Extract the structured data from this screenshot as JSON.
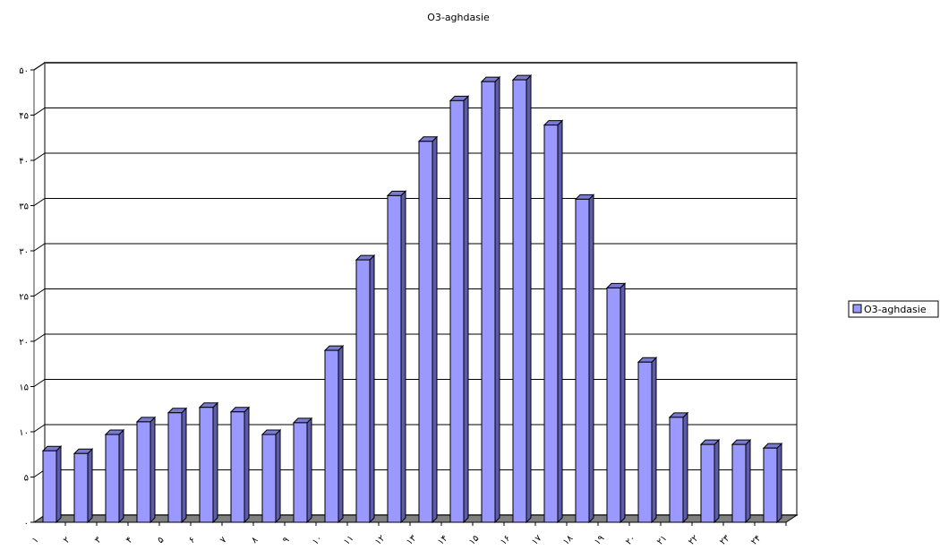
{
  "chart_data": {
    "type": "bar",
    "title": "O3-aghdasie",
    "xlabel": "",
    "ylabel": "",
    "categories": [
      "۱",
      "۲",
      "۳",
      "۴",
      "۵",
      "۶",
      "۷",
      "۸",
      "۹",
      "۱۰",
      "۱۱",
      "۱۲",
      "۱۳",
      "۱۴",
      "۱۵",
      "۱۶",
      "۱۷",
      "۱۸",
      "۱۹",
      "۲۰",
      "۲۱",
      "۲۲",
      "۲۳",
      "۲۴"
    ],
    "series": [
      {
        "name": "O3-aghdasie",
        "color": "#9999FF",
        "values": [
          7.9,
          7.6,
          9.7,
          11.1,
          12.1,
          12.7,
          12.2,
          9.7,
          11.0,
          19.0,
          29.0,
          36.1,
          42.1,
          46.6,
          48.7,
          48.9,
          43.9,
          35.7,
          25.9,
          17.7,
          11.6,
          8.6,
          8.6,
          8.2
        ]
      }
    ],
    "ylim": [
      0,
      50
    ],
    "yticks": [
      0,
      5,
      10,
      15,
      20,
      25,
      30,
      35,
      40,
      45,
      50
    ],
    "ytick_labels": [
      "۰",
      "۵",
      "۱۰",
      "۱۵",
      "۲۰",
      "۲۵",
      "۳۰",
      "۳۵",
      "۴۰",
      "۴۵",
      "۵۰"
    ],
    "grid": true,
    "legend": "right",
    "three_d": true,
    "floor_color": "#808080"
  }
}
